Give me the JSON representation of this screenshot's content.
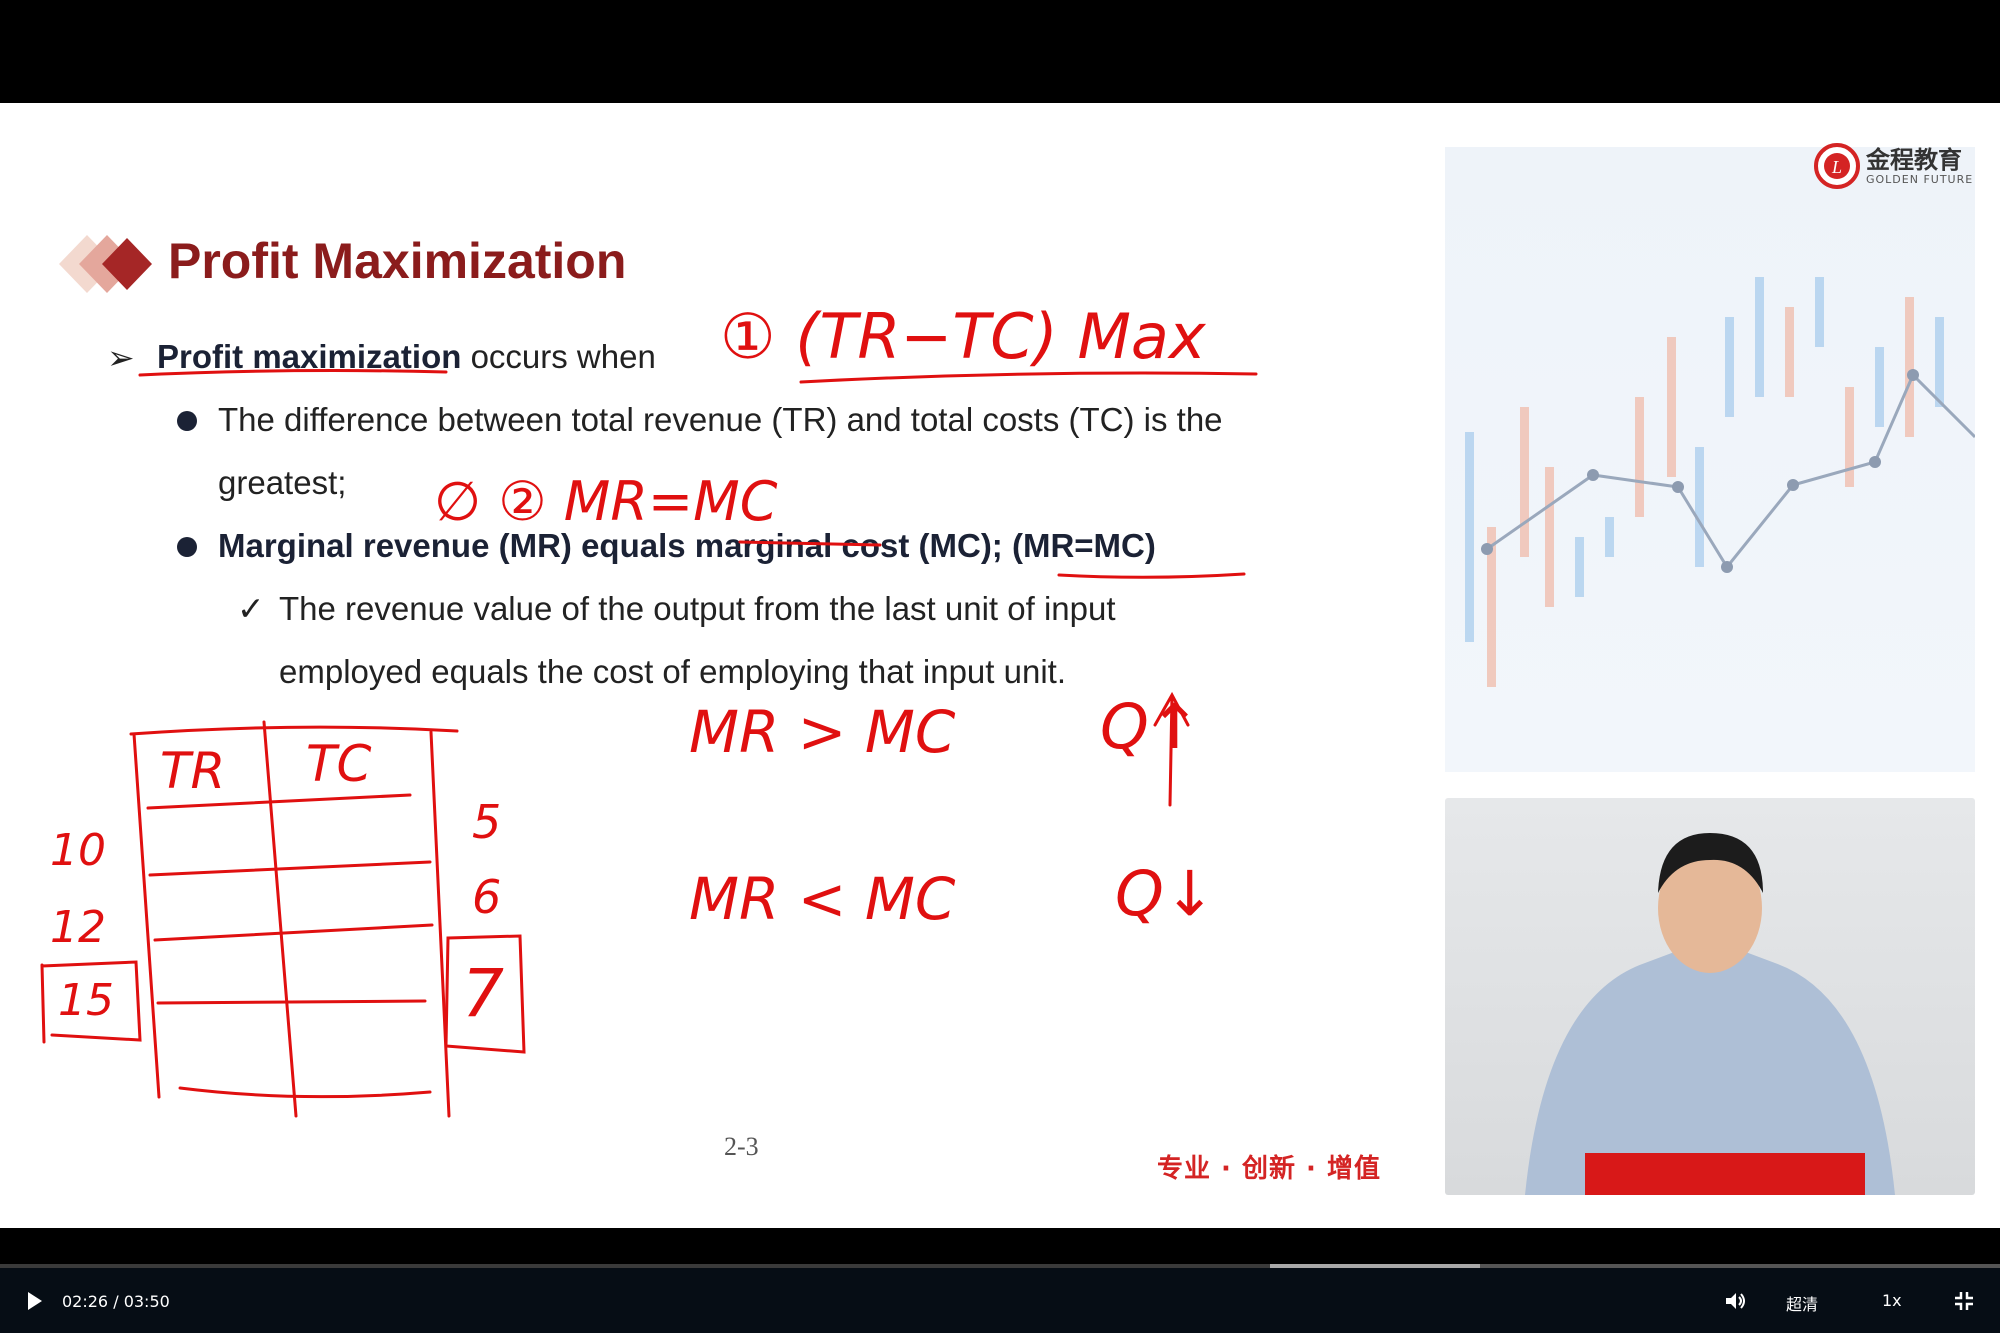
{
  "slide": {
    "title": "Profit Maximization",
    "bullet1_bold": "Profit maximization",
    "bullet1_rest": "occurs when",
    "sub1_line1": "The difference between total revenue (TR) and total costs (TC) is the",
    "sub1_line2": "greatest;",
    "sub2": "Marginal revenue (MR) equals marginal cost (MC); (MR=MC)",
    "check_line1": "The revenue value of the output from the last unit of input",
    "check_line2": "employed equals the cost of employing that input unit.",
    "page_number": "2-3",
    "slogan": "专业 · 创新 · 增值",
    "logo_cn": "金程教育",
    "logo_en": "GOLDEN FUTURE",
    "accent_color": "#8b1c1c"
  },
  "annotations": {
    "a1": "① (TR−TC) Max",
    "a2": "∅  ② MR=MC",
    "a3_left": "MR  >  MC",
    "a3_right": "Q↑",
    "a4_left": "MR  <  MC",
    "a4_right": "Q↓",
    "table_tr": "TR",
    "table_tc": "TC",
    "left_nums": [
      "10",
      "12",
      "15"
    ],
    "right_nums": [
      "5",
      "6",
      "7"
    ],
    "ink_color": "#e01010"
  },
  "player": {
    "current_time": "02:26",
    "duration": "03:50",
    "time_sep": "/",
    "progress_percent": 63.5,
    "quality": "超清",
    "speed": "1x",
    "icons": [
      "play-icon",
      "volume-icon",
      "fullscreen-exit-icon"
    ]
  }
}
